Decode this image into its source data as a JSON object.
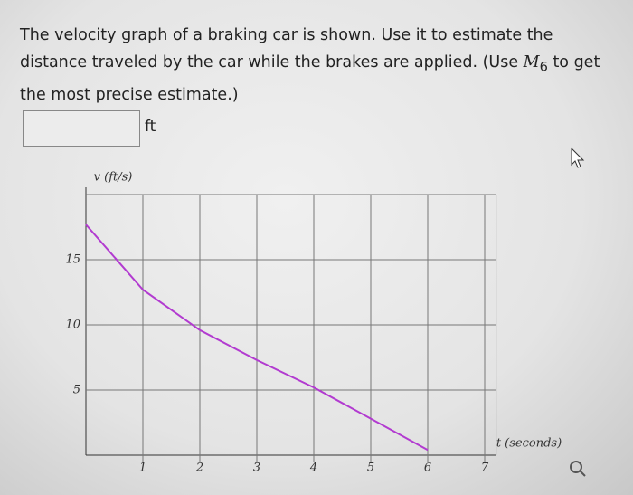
{
  "question": {
    "before": "The velocity graph of a braking car is shown. Use it to estimate the distance traveled by the car while the brakes are applied. (Use ",
    "symbol": "M",
    "subscript": "6",
    "after": " to get the most precise estimate.)"
  },
  "answer_unit": "ft",
  "chart_data": {
    "type": "line",
    "x_label": "t (seconds)",
    "y_label": "v (ft/s)",
    "x": [
      0,
      1,
      2,
      3,
      4,
      5,
      6
    ],
    "series": [
      {
        "color": "#b23bd0",
        "values": [
          17.7,
          12.7,
          9.6,
          7.3,
          5.2,
          2.8,
          0.4
        ]
      }
    ],
    "xlim": [
      0,
      7.2
    ],
    "ylim": [
      0,
      20
    ],
    "xticks": [
      1,
      2,
      3,
      4,
      5,
      6,
      7
    ],
    "yticks": [
      5,
      10,
      15
    ],
    "grid": true
  }
}
